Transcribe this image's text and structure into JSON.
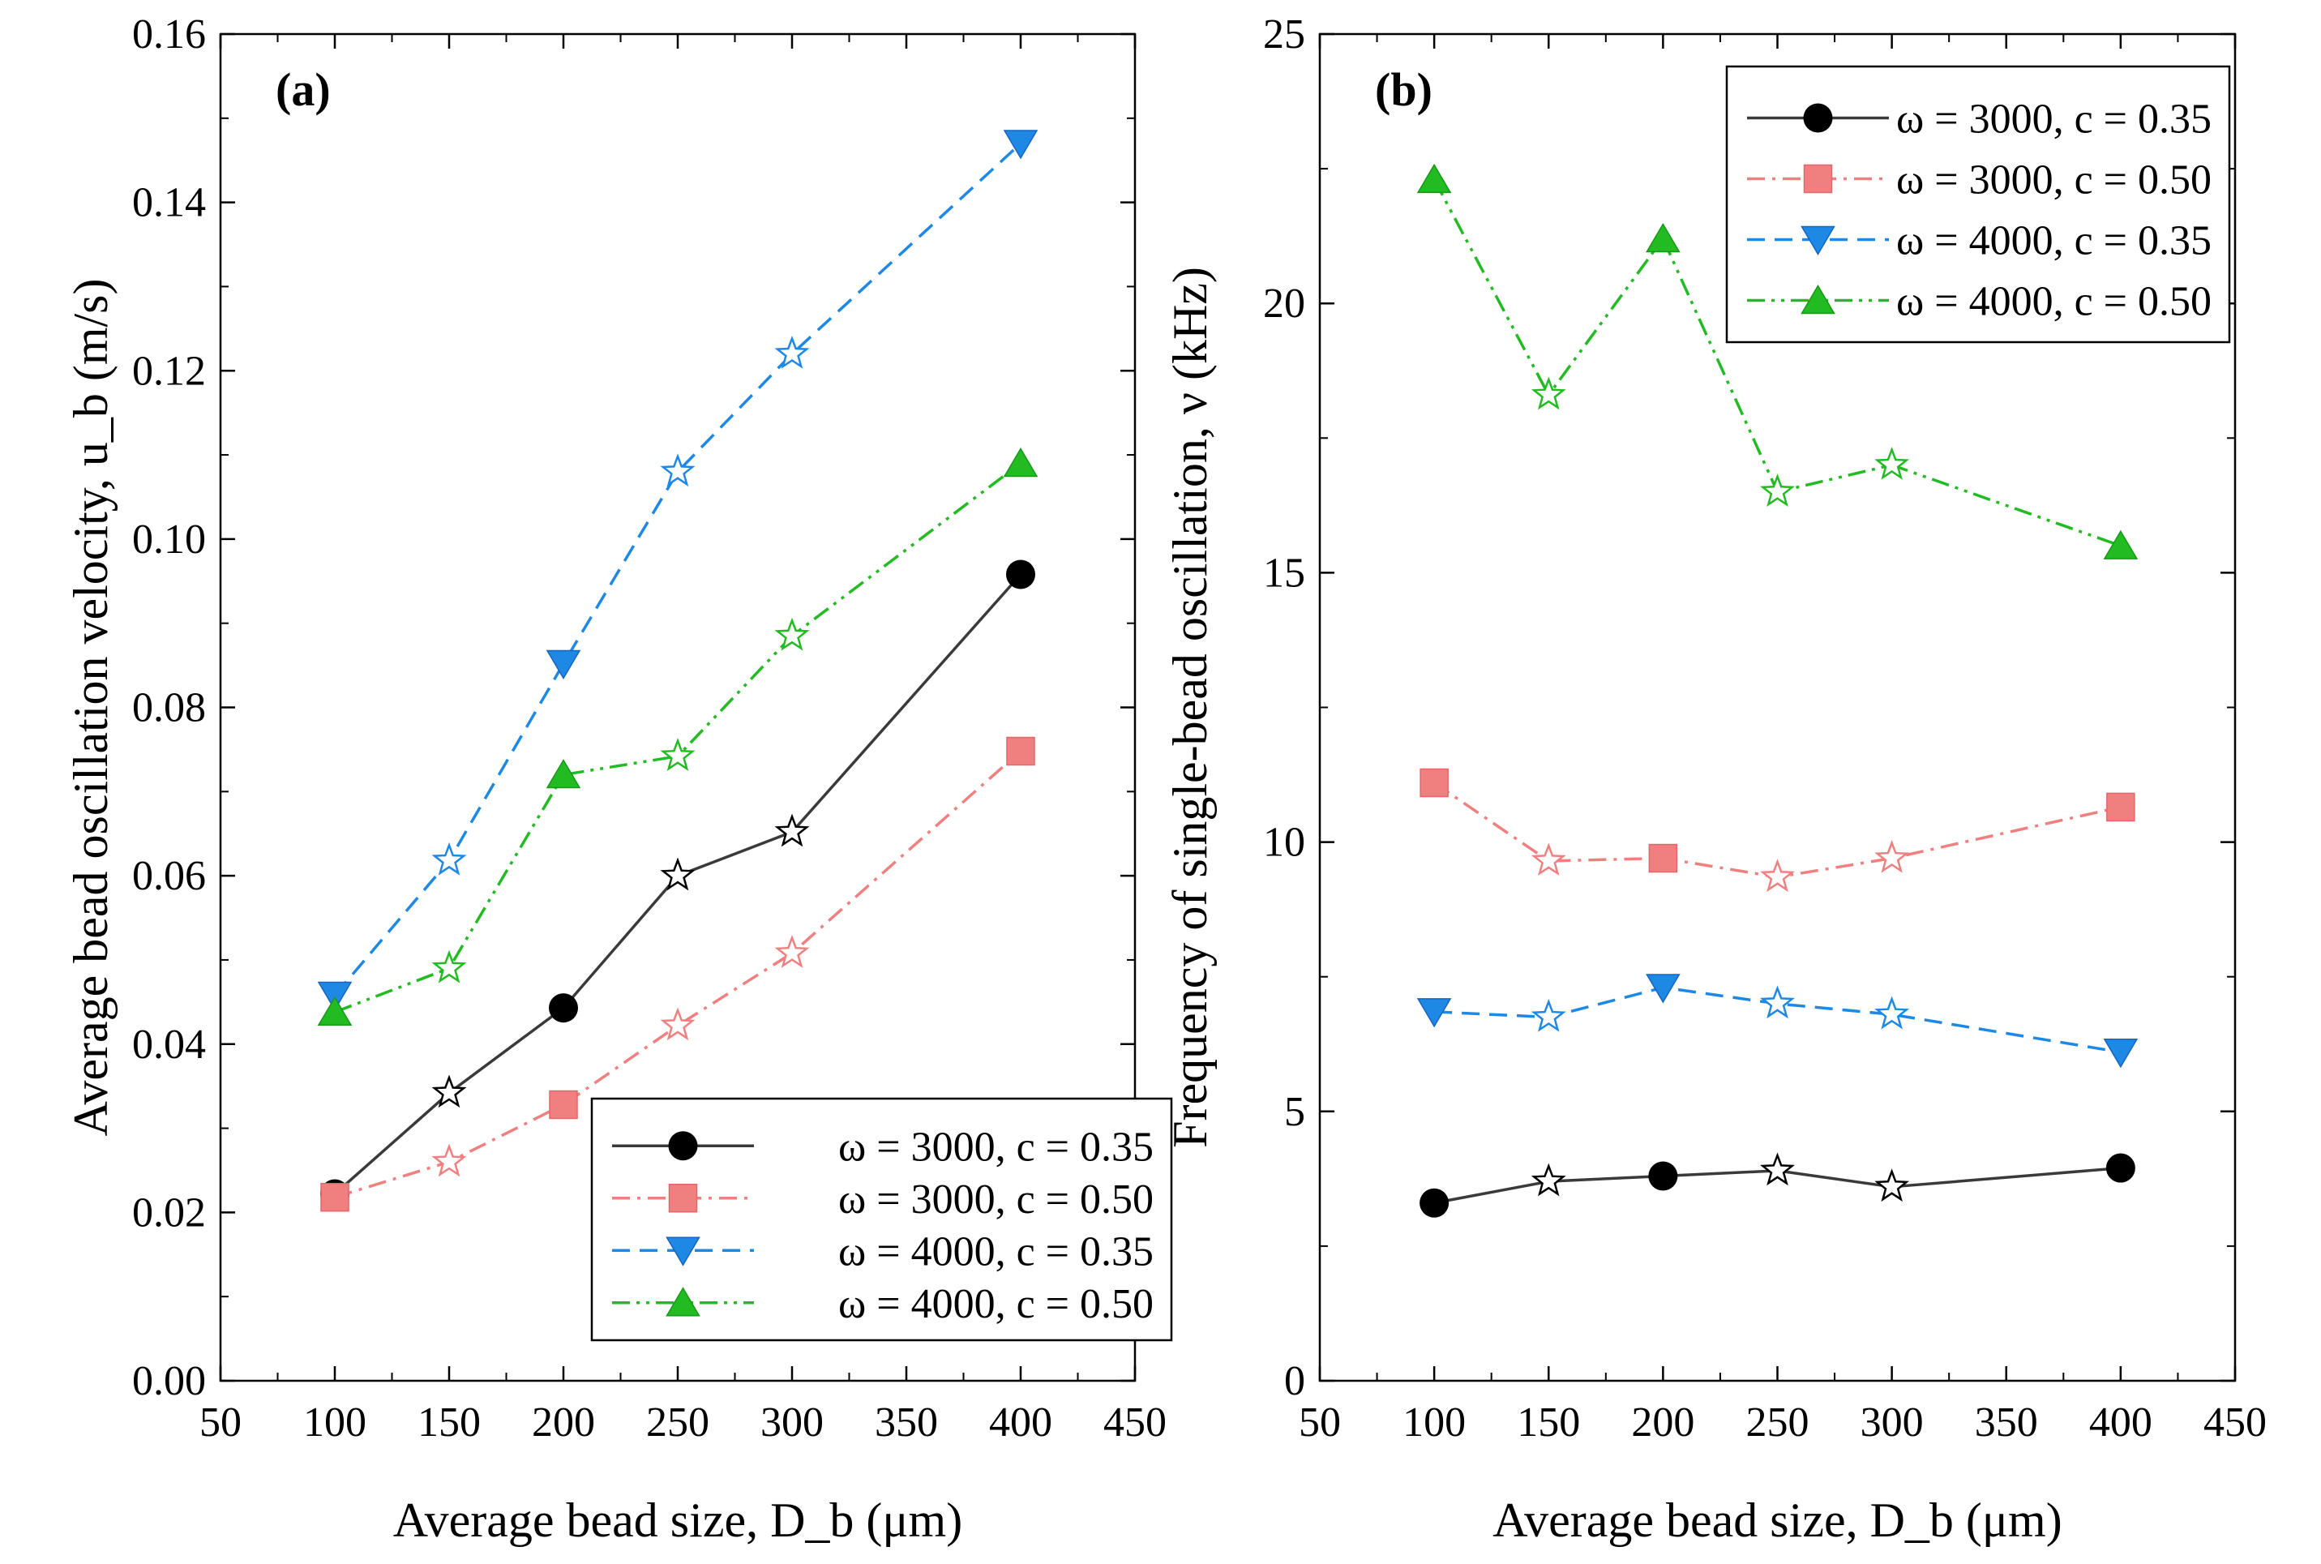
{
  "chart_data": [
    {
      "type": "line",
      "panel_label": "(a)",
      "xlabel": "Average bead size, D_b (μm)",
      "ylabel": "Average bead oscillation velocity, u_b (m/s)",
      "xlim": [
        50,
        450
      ],
      "ylim": [
        0,
        0.16
      ],
      "xticks": [
        "50",
        "100",
        "150",
        "200",
        "250",
        "300",
        "350",
        "400",
        "450"
      ],
      "yticks": [
        "0.00",
        "0.02",
        "0.04",
        "0.06",
        "0.08",
        "0.10",
        "0.12",
        "0.14",
        "0.16"
      ],
      "legend_position": "bottom-right",
      "x": [
        100,
        150,
        200,
        250,
        300,
        400
      ],
      "series": [
        {
          "name": "ω = 3000, c = 0.35",
          "omega": "3000",
          "c": "0.35",
          "color": "#3a3a3a",
          "marker": "circle",
          "dash": "solid",
          "values": [
            0.0222,
            0.0342,
            0.0443,
            0.06,
            0.0652,
            0.0958
          ]
        },
        {
          "name": "ω = 3000, c = 0.50",
          "omega": "3000",
          "c": "0.50",
          "color": "#f08080",
          "marker": "square",
          "dash": "dashdot",
          "values": [
            0.0218,
            0.026,
            0.0328,
            0.0422,
            0.0508,
            0.0748
          ]
        },
        {
          "name": "ω = 4000, c = 0.35",
          "omega": "4000",
          "c": "0.35",
          "color": "#1e88e5",
          "marker": "triangle-down",
          "dash": "dashed",
          "values": [
            0.0458,
            0.0618,
            0.0852,
            0.108,
            0.122,
            0.147
          ]
        },
        {
          "name": "ω = 4000, c = 0.50",
          "omega": "4000",
          "c": "0.50",
          "color": "#22bb22",
          "marker": "triangle-up",
          "dash": "dashdotdot",
          "values": [
            0.0438,
            0.049,
            0.072,
            0.0742,
            0.0885,
            0.109
          ]
        }
      ]
    },
    {
      "type": "line",
      "panel_label": "(b)",
      "xlabel": "Average bead size, D_b (μm)",
      "ylabel": "Frequency of single-bead oscillation, ν (kHz)",
      "xlim": [
        50,
        450
      ],
      "ylim": [
        0,
        25
      ],
      "xticks": [
        "50",
        "100",
        "150",
        "200",
        "250",
        "300",
        "350",
        "400",
        "450"
      ],
      "yticks": [
        "0",
        "5",
        "10",
        "15",
        "20",
        "25"
      ],
      "legend_position": "top-right",
      "x": [
        100,
        150,
        200,
        250,
        300,
        400
      ],
      "series": [
        {
          "name": "ω = 3000, c = 0.35",
          "omega": "3000",
          "c": "0.35",
          "color": "#3a3a3a",
          "marker": "circle",
          "dash": "solid",
          "values": [
            3.3,
            3.7,
            3.8,
            3.9,
            3.6,
            3.95
          ]
        },
        {
          "name": "ω = 3000, c = 0.50",
          "omega": "3000",
          "c": "0.50",
          "color": "#f08080",
          "marker": "square",
          "dash": "dashdot",
          "values": [
            11.1,
            9.65,
            9.7,
            9.35,
            9.7,
            10.65
          ]
        },
        {
          "name": "ω = 4000, c = 0.35",
          "omega": "4000",
          "c": "0.35",
          "color": "#1e88e5",
          "marker": "triangle-down",
          "dash": "dashed",
          "values": [
            6.85,
            6.75,
            7.3,
            7.0,
            6.8,
            6.1
          ]
        },
        {
          "name": "ω = 4000, c = 0.50",
          "omega": "4000",
          "c": "0.50",
          "color": "#22bb22",
          "marker": "triangle-up",
          "dash": "dashdotdot",
          "values": [
            22.3,
            18.3,
            21.2,
            16.5,
            17.0,
            15.5
          ]
        }
      ]
    }
  ]
}
